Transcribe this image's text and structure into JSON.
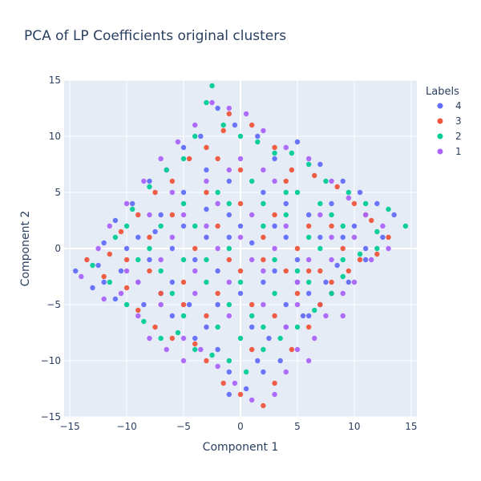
{
  "chart_data": {
    "type": "scatter",
    "title": "PCA of LP Coefficients original clusters",
    "xlabel": "Component 1",
    "ylabel": "Component 2",
    "xlim": [
      -15.5,
      15.5
    ],
    "ylim": [
      -15,
      15
    ],
    "xticks": [
      -15,
      -10,
      -5,
      0,
      5,
      10,
      15
    ],
    "yticks": [
      -15,
      -10,
      -5,
      0,
      5,
      10,
      15
    ],
    "xtick_labels": [
      "−15",
      "−10",
      "−5",
      "0",
      "5",
      "10",
      "15"
    ],
    "ytick_labels": [
      "−15",
      "−10",
      "−5",
      "0",
      "5",
      "10",
      "15"
    ],
    "grid": true,
    "legend_title": "Labels",
    "legend_position": "top-right",
    "series": [
      {
        "name": "4",
        "color": "#636efa",
        "points": [
          [
            -14.5,
            -2
          ],
          [
            -13,
            -3.5
          ],
          [
            -12.5,
            -1.5
          ],
          [
            -11,
            -4.5
          ],
          [
            -10.5,
            -2
          ],
          [
            -9,
            -3
          ],
          [
            -8.5,
            -5
          ],
          [
            -7,
            -4
          ],
          [
            -6,
            -6
          ],
          [
            -4.5,
            -5
          ],
          [
            -3,
            -7
          ],
          [
            -2,
            -9
          ],
          [
            -1,
            -11
          ],
          [
            0.5,
            -12.5
          ],
          [
            1.5,
            -10
          ],
          [
            2.5,
            -8
          ],
          [
            3.5,
            -10
          ],
          [
            4,
            -7
          ],
          [
            5.5,
            -6
          ],
          [
            6,
            -4
          ],
          [
            7.5,
            -3
          ],
          [
            8.5,
            -1.5
          ],
          [
            9.5,
            -3
          ],
          [
            11,
            0
          ],
          [
            12.5,
            1
          ],
          [
            13.5,
            3
          ],
          [
            12,
            4
          ],
          [
            10.5,
            5
          ],
          [
            9,
            6
          ],
          [
            7,
            7.5
          ],
          [
            5,
            9.5
          ],
          [
            3,
            8
          ],
          [
            1.5,
            10
          ],
          [
            -0.5,
            11
          ],
          [
            -2,
            12.5
          ],
          [
            -3.5,
            10
          ],
          [
            -5,
            9
          ],
          [
            -6.5,
            7
          ],
          [
            -8,
            6
          ],
          [
            -9.5,
            4
          ],
          [
            -11,
            2.5
          ],
          [
            -12,
            0.5
          ],
          [
            -10,
            0
          ],
          [
            -7.5,
            1.5
          ],
          [
            -5,
            2
          ],
          [
            -3,
            3.5
          ],
          [
            -1,
            1
          ],
          [
            1,
            0.5
          ],
          [
            3,
            2
          ],
          [
            5,
            -1
          ],
          [
            7,
            1
          ],
          [
            -2,
            -2
          ],
          [
            0,
            -4
          ],
          [
            2,
            -3
          ],
          [
            4,
            -5
          ],
          [
            -4,
            -1
          ],
          [
            -6,
            -3
          ],
          [
            6,
            3
          ],
          [
            8,
            4
          ],
          [
            2,
            5
          ],
          [
            -1,
            6
          ],
          [
            -3,
            7
          ],
          [
            -8,
            -1
          ],
          [
            -6,
            0
          ],
          [
            9,
            1
          ],
          [
            4,
            4
          ],
          [
            -2,
            -5
          ],
          [
            1,
            -7
          ],
          [
            3,
            -2
          ],
          [
            -5,
            5
          ],
          [
            -7,
            3
          ],
          [
            0,
            2
          ],
          [
            10,
            2
          ],
          [
            11,
            -1
          ],
          [
            -12,
            -3
          ],
          [
            6,
            -6
          ],
          [
            -4,
            -8
          ],
          [
            2,
            -11
          ],
          [
            -1,
            -13
          ],
          [
            5,
            -3
          ],
          [
            7,
            -5
          ],
          [
            -9,
            1
          ],
          [
            -3,
            1
          ],
          [
            4,
            1
          ],
          [
            -1,
            3
          ]
        ]
      },
      {
        "name": "3",
        "color": "#ef553b",
        "points": [
          [
            -13.5,
            -1
          ],
          [
            -12,
            -2.5
          ],
          [
            -10,
            -3.5
          ],
          [
            -9,
            -5.5
          ],
          [
            -7.5,
            -7
          ],
          [
            -6,
            -8
          ],
          [
            -4,
            -8.5
          ],
          [
            -3,
            -10
          ],
          [
            -1.5,
            -12
          ],
          [
            0,
            -13
          ],
          [
            2,
            -14
          ],
          [
            3,
            -12
          ],
          [
            4.5,
            -9
          ],
          [
            6,
            -7
          ],
          [
            7,
            -5
          ],
          [
            8,
            -3
          ],
          [
            9.5,
            -2
          ],
          [
            10.5,
            -1
          ],
          [
            12,
            -0.5
          ],
          [
            13,
            1
          ],
          [
            11.5,
            2.5
          ],
          [
            10,
            4
          ],
          [
            8.5,
            5.5
          ],
          [
            6.5,
            6.5
          ],
          [
            4.5,
            7
          ],
          [
            3,
            9
          ],
          [
            1,
            11
          ],
          [
            -1,
            12
          ],
          [
            -1.5,
            10.5
          ],
          [
            -3,
            9
          ],
          [
            -4.5,
            8
          ],
          [
            -6,
            6
          ],
          [
            -7.5,
            5
          ],
          [
            -9,
            3
          ],
          [
            -10.5,
            1.5
          ],
          [
            -11.5,
            -0.5
          ],
          [
            -8,
            -2
          ],
          [
            -5,
            -3
          ],
          [
            -2,
            -4
          ],
          [
            1,
            -5
          ],
          [
            3,
            -6
          ],
          [
            5,
            -4
          ],
          [
            7,
            -2
          ],
          [
            9,
            0
          ],
          [
            6,
            2
          ],
          [
            3,
            3
          ],
          [
            0,
            4
          ],
          [
            -3,
            5
          ],
          [
            -6,
            3
          ],
          [
            -8,
            1
          ],
          [
            -4,
            0
          ],
          [
            -1,
            -1
          ],
          [
            2,
            1
          ],
          [
            5,
            0
          ],
          [
            8,
            2
          ],
          [
            -2,
            2
          ],
          [
            0,
            -2
          ],
          [
            2,
            -1
          ],
          [
            4,
            -2
          ],
          [
            -5,
            -5
          ],
          [
            -3,
            -6
          ],
          [
            1,
            -9
          ],
          [
            -7,
            -4
          ],
          [
            8,
            -4
          ],
          [
            11,
            3
          ],
          [
            -10,
            -1
          ],
          [
            4,
            6
          ],
          [
            -2,
            8
          ],
          [
            0,
            7
          ],
          [
            6,
            -2
          ]
        ]
      },
      {
        "name": "2",
        "color": "#00cc96",
        "points": [
          [
            -13,
            -1.5
          ],
          [
            -11.5,
            -3
          ],
          [
            -10,
            -5
          ],
          [
            -8.5,
            -6.5
          ],
          [
            -7,
            -8
          ],
          [
            -5.5,
            -7.5
          ],
          [
            -4,
            -9
          ],
          [
            -2.5,
            -9.5
          ],
          [
            -1,
            -10
          ],
          [
            0.5,
            -11
          ],
          [
            2,
            -9
          ],
          [
            3.5,
            -8
          ],
          [
            5,
            -7
          ],
          [
            6.5,
            -5.5
          ],
          [
            8,
            -4
          ],
          [
            9,
            -2.5
          ],
          [
            10.5,
            -0.5
          ],
          [
            12,
            1.5
          ],
          [
            14.5,
            2
          ],
          [
            13,
            3.5
          ],
          [
            11,
            4
          ],
          [
            9.5,
            5
          ],
          [
            7.5,
            6
          ],
          [
            6,
            7.5
          ],
          [
            4.5,
            8.5
          ],
          [
            3,
            8.5
          ],
          [
            1.5,
            9.5
          ],
          [
            0,
            10
          ],
          [
            -1.5,
            11
          ],
          [
            -2.5,
            14.5
          ],
          [
            -3,
            13
          ],
          [
            -4,
            10
          ],
          [
            -5,
            8
          ],
          [
            -6.5,
            7
          ],
          [
            -8,
            5.5
          ],
          [
            -9.5,
            3.5
          ],
          [
            -11,
            1
          ],
          [
            -9,
            -1
          ],
          [
            -7,
            -2
          ],
          [
            -5,
            -1
          ],
          [
            -3,
            -3
          ],
          [
            -1,
            -5
          ],
          [
            1,
            -6
          ],
          [
            3,
            -4
          ],
          [
            5,
            -2
          ],
          [
            7,
            0
          ],
          [
            9,
            2
          ],
          [
            7,
            4
          ],
          [
            4,
            5
          ],
          [
            1,
            6
          ],
          [
            -2,
            5
          ],
          [
            -5,
            4
          ],
          [
            -7,
            2
          ],
          [
            -4,
            2
          ],
          [
            -1,
            0
          ],
          [
            2,
            2
          ],
          [
            4,
            3
          ],
          [
            6,
            1
          ],
          [
            -3,
            -1
          ],
          [
            0,
            -3
          ],
          [
            3,
            -1
          ],
          [
            -6,
            -4
          ],
          [
            -2,
            -7
          ],
          [
            2,
            -7
          ],
          [
            6,
            -3
          ],
          [
            9,
            -1
          ],
          [
            12,
            0
          ],
          [
            -8,
            0
          ],
          [
            -10,
            2
          ],
          [
            5,
            5
          ],
          [
            2,
            4
          ],
          [
            -1,
            4
          ],
          [
            8,
            3
          ],
          [
            -5,
            -6
          ],
          [
            0,
            -8
          ]
        ]
      },
      {
        "name": "1",
        "color": "#ab63fa",
        "points": [
          [
            -14,
            -2.5
          ],
          [
            -12,
            -4.5
          ],
          [
            -10.5,
            -4
          ],
          [
            -9,
            -6
          ],
          [
            -8,
            -8
          ],
          [
            -6.5,
            -9
          ],
          [
            -5,
            -8
          ],
          [
            -3.5,
            -9
          ],
          [
            -2,
            -10.5
          ],
          [
            -0.5,
            -12
          ],
          [
            1,
            -13.5
          ],
          [
            3,
            -13
          ],
          [
            4,
            -11
          ],
          [
            5,
            -9
          ],
          [
            6.5,
            -8
          ],
          [
            7.5,
            -6
          ],
          [
            9,
            -4
          ],
          [
            10,
            -3
          ],
          [
            11.5,
            -1
          ],
          [
            13,
            0
          ],
          [
            12.5,
            2
          ],
          [
            11,
            3
          ],
          [
            9.5,
            4.5
          ],
          [
            8,
            6
          ],
          [
            6,
            8
          ],
          [
            4,
            9
          ],
          [
            2,
            10.5
          ],
          [
            0.5,
            12
          ],
          [
            -1,
            12.5
          ],
          [
            -2.5,
            13
          ],
          [
            -4,
            11
          ],
          [
            -5.5,
            9.5
          ],
          [
            -7,
            8
          ],
          [
            -8.5,
            6
          ],
          [
            -10,
            4
          ],
          [
            -11.5,
            2
          ],
          [
            -12.5,
            0
          ],
          [
            -10,
            -2
          ],
          [
            -7,
            -1
          ],
          [
            -4,
            -2
          ],
          [
            -1,
            -3
          ],
          [
            2,
            -2
          ],
          [
            5,
            -3
          ],
          [
            8,
            -1
          ],
          [
            10,
            1
          ],
          [
            7,
            3
          ],
          [
            4,
            2
          ],
          [
            1,
            3
          ],
          [
            -2,
            4
          ],
          [
            -5,
            3
          ],
          [
            -8,
            3
          ],
          [
            -6,
            1
          ],
          [
            -3,
            2
          ],
          [
            0,
            1
          ],
          [
            3,
            0
          ],
          [
            6,
            -1
          ],
          [
            -2,
            0
          ],
          [
            1,
            -1
          ],
          [
            -4,
            -4
          ],
          [
            -1,
            -6
          ],
          [
            2,
            -5
          ],
          [
            5,
            -5
          ],
          [
            -7,
            -5
          ],
          [
            -9,
            -3
          ],
          [
            8,
            1
          ],
          [
            3,
            6
          ],
          [
            0,
            8
          ],
          [
            -3,
            6
          ],
          [
            -6,
            5
          ],
          [
            9,
            -6
          ],
          [
            6,
            -10
          ],
          [
            -5,
            -10
          ],
          [
            -1,
            7
          ],
          [
            2,
            7
          ],
          [
            4,
            -7
          ]
        ]
      }
    ]
  }
}
